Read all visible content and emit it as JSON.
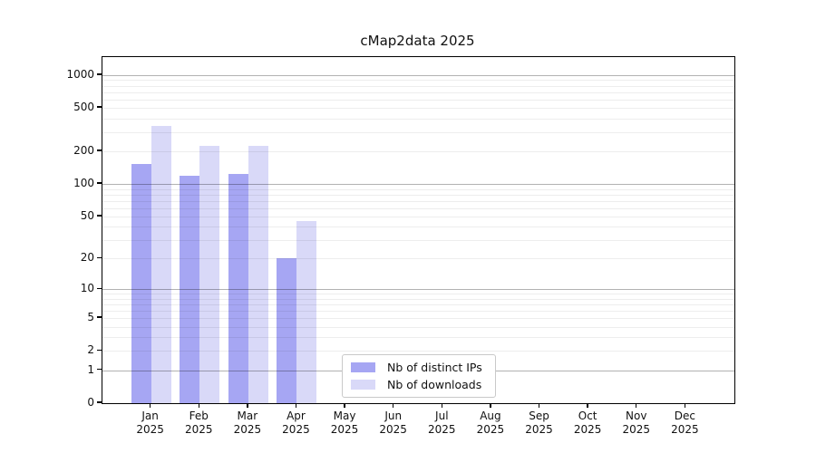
{
  "page": {
    "background": "#ffffff"
  },
  "chart_data": {
    "type": "bar",
    "title": "cMap2data 2025",
    "categories": [
      "Jan",
      "Feb",
      "Mar",
      "Apr",
      "May",
      "Jun",
      "Jul",
      "Aug",
      "Sep",
      "Oct",
      "Nov",
      "Dec"
    ],
    "category_year_line": "2025",
    "series": [
      {
        "name": "Nb of distinct IPs",
        "color": "#a6a6f3",
        "values": [
          152,
          120,
          123,
          20,
          0,
          0,
          0,
          0,
          0,
          0,
          0,
          0
        ]
      },
      {
        "name": "Nb of downloads",
        "color": "#d9d9f8",
        "values": [
          340,
          224,
          226,
          45,
          0,
          0,
          0,
          0,
          0,
          0,
          0,
          0
        ]
      }
    ],
    "xlabel": "",
    "ylabel": "",
    "yscale": "log1p",
    "ylim": [
      0,
      1460
    ],
    "yticks": [
      1000,
      500,
      200,
      100,
      50,
      20,
      10,
      5,
      2,
      1,
      0
    ],
    "major_gridlines": [
      1,
      10,
      100,
      1000
    ],
    "minor_gridlines": [
      2,
      3,
      4,
      5,
      6,
      7,
      8,
      9,
      20,
      30,
      40,
      50,
      60,
      70,
      80,
      90,
      200,
      300,
      400,
      500,
      600,
      700,
      800,
      900
    ],
    "grid": true,
    "legend": {
      "position": "lower-center-inside",
      "entries": [
        "Nb of distinct IPs",
        "Nb of downloads"
      ]
    },
    "colors": {
      "axis": "#000000",
      "major_grid": "#b0b0b0",
      "minor_grid": "#ededed",
      "text": "#111111",
      "legend_border": "#c9c9c9",
      "background": "#ffffff"
    }
  }
}
